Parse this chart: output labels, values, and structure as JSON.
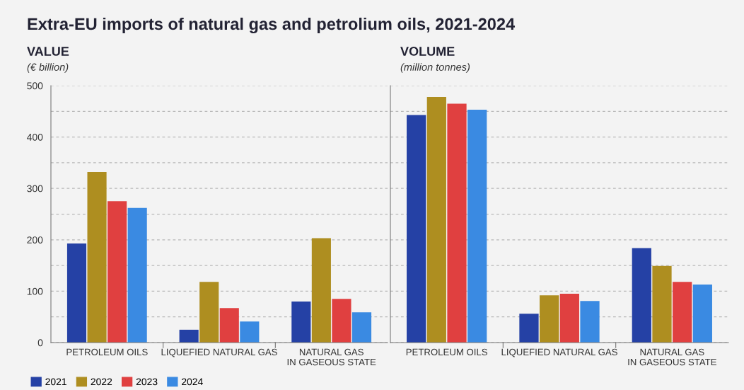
{
  "chart_data": [
    {
      "type": "bar",
      "title": "Extra-EU imports of natural gas and petrolium oils, 2021-2024",
      "subtitle": "VALUE",
      "ylabel": "(€ billion)",
      "categories": [
        "PETROLEUM OILS",
        "LIQUEFIED NATURAL GAS",
        "NATURAL GAS\nIN GASEOUS STATE"
      ],
      "series": [
        {
          "name": "2021",
          "color": "#2541a5",
          "values": [
            193,
            25,
            80
          ]
        },
        {
          "name": "2022",
          "color": "#ae8e20",
          "values": [
            332,
            118,
            203
          ]
        },
        {
          "name": "2023",
          "color": "#e04040",
          "values": [
            275,
            67,
            85
          ]
        },
        {
          "name": "2024",
          "color": "#3a8ae2",
          "values": [
            262,
            41,
            59
          ]
        }
      ],
      "ylim": [
        0,
        500
      ],
      "yticks": [
        0,
        {
          "value": 50,
          "label": null
        },
        100,
        {
          "value": 150,
          "label": null
        },
        200,
        {
          "value": 250,
          "label": null
        },
        300,
        {
          "value": 350,
          "label": null
        },
        400,
        {
          "value": 450,
          "label": null
        },
        500
      ],
      "grid": "y",
      "legend": "bottom left"
    },
    {
      "type": "bar",
      "subtitle": "VOLUME",
      "ylabel": "(million tonnes)",
      "categories": [
        "PETROLEUM OILS",
        "LIQUEFIED NATURAL GAS",
        "NATURAL GAS\nIN GASEOUS STATE"
      ],
      "series": [
        {
          "color": "#2541a5",
          "values": [
            443,
            56,
            184
          ]
        },
        {
          "color": "#ae8e20",
          "values": [
            478,
            92,
            149
          ]
        },
        {
          "color": "#e04040",
          "values": [
            465,
            95,
            118
          ]
        },
        {
          "color": "#3a8ae2",
          "values": [
            453,
            81,
            113
          ]
        }
      ],
      "ylim": [
        0,
        500
      ],
      "yticks": [
        0,
        {
          "value": 50,
          "label": null
        },
        100,
        {
          "value": 150,
          "label": null
        },
        200,
        {
          "value": 250,
          "label": null
        },
        300,
        {
          "value": 350,
          "label": null
        },
        400,
        {
          "value": 450,
          "label": null
        },
        500
      ],
      "grid": "y",
      "tick_labels": "x"
    }
  ]
}
